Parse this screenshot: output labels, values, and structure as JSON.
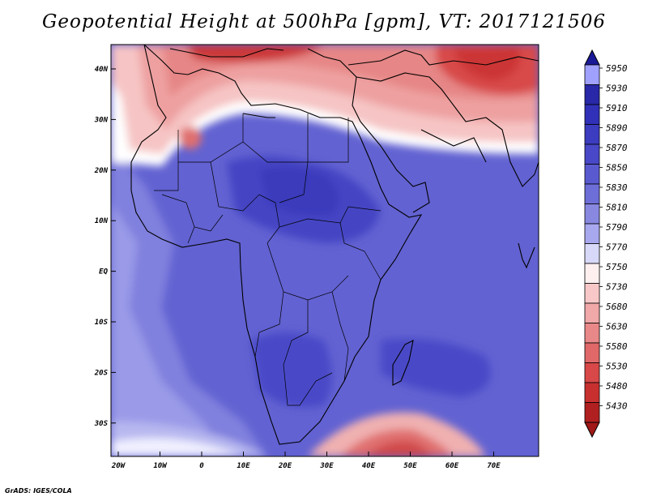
{
  "title": "Geopotential Height at 500hPa [gpm], VT: 2017121506",
  "footer": "GrADS: IGES/COLA",
  "map": {
    "lat_labels": [
      "40N",
      "30N",
      "20N",
      "10N",
      "EQ",
      "10S",
      "20S",
      "30S"
    ],
    "lon_labels": [
      "20W",
      "10W",
      "0",
      "10E",
      "20E",
      "30E",
      "40E",
      "50E",
      "60E",
      "70E"
    ]
  },
  "legend": {
    "levels": [
      {
        "label": "5950",
        "color": "#a0a0ff"
      },
      {
        "label": "5930",
        "color": "#2828a8"
      },
      {
        "label": "5910",
        "color": "#3030b8"
      },
      {
        "label": "5890",
        "color": "#3c3cc0"
      },
      {
        "label": "5870",
        "color": "#4848c8"
      },
      {
        "label": "5850",
        "color": "#5a5ad0"
      },
      {
        "label": "5830",
        "color": "#6e6ed8"
      },
      {
        "label": "5810",
        "color": "#8888e0"
      },
      {
        "label": "5790",
        "color": "#a8a8ee"
      },
      {
        "label": "5770",
        "color": "#d8d8f8"
      },
      {
        "label": "5750",
        "color": "#fff0f0"
      },
      {
        "label": "5730",
        "color": "#f8c8c8"
      },
      {
        "label": "5680",
        "color": "#f0a8a8"
      },
      {
        "label": "5630",
        "color": "#e88888"
      },
      {
        "label": "5580",
        "color": "#e06868"
      },
      {
        "label": "5530",
        "color": "#d84848"
      },
      {
        "label": "5480",
        "color": "#c83030"
      },
      {
        "label": "5430",
        "color": "#b02020"
      }
    ],
    "top_color": "#1a1a96",
    "bottom_color": "#a01818"
  }
}
